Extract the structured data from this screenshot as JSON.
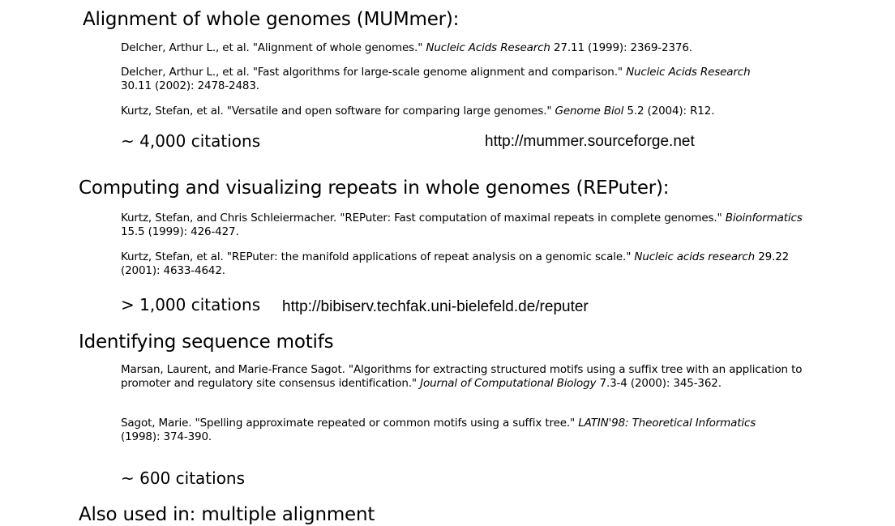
{
  "sections": [
    {
      "heading": "Alignment of whole genomes (MUMmer):",
      "refs": [
        {
          "pre": "Delcher, Arthur L., et al. \"Alignment of whole genomes.\" ",
          "journal": "Nucleic Acids Research",
          "post": " 27.11 (1999): 2369-2376."
        },
        {
          "pre": "Delcher, Arthur L., et al. \"Fast algorithms for large-scale genome alignment and comparison.\" ",
          "journal": "Nucleic Acids Research",
          "post": " 30.11 (2002): 2478-2483."
        },
        {
          "pre": "Kurtz, Stefan, et al. \"Versatile and open software for comparing large genomes.\" ",
          "journal": "Genome Biol",
          "post": " 5.2 (2004): R12."
        }
      ],
      "citations": "~ 4,000 citations",
      "url": "http://mummer.sourceforge.net"
    },
    {
      "heading": "Computing and visualizing repeats in whole genomes (REPuter):",
      "refs": [
        {
          "pre": "Kurtz, Stefan, and Chris Schleiermacher. \"REPuter: Fast computation of maximal repeats in complete genomes.\" ",
          "journal": "Bioinformatics",
          "post": " 15.5 (1999): 426-427."
        },
        {
          "pre": "Kurtz, Stefan, et al. \"REPuter: the manifold applications of repeat analysis on a genomic scale.\" ",
          "journal": "Nucleic acids research",
          "post": " 29.22 (2001): 4633-4642."
        }
      ],
      "citations": "> 1,000 citations",
      "url": "http://bibiserv.techfak.uni-bielefeld.de/reputer"
    },
    {
      "heading": "Identifying sequence motifs",
      "refs": [
        {
          "pre": "Marsan, Laurent, and Marie-France Sagot. \"Algorithms for extracting structured motifs using a suffix tree with an application to promoter and regulatory site consensus identification.\" ",
          "journal": "Journal of Computational Biology",
          "post": " 7.3-4 (2000): 345-362."
        },
        {
          "pre": "Sagot, Marie. \"Spelling approximate repeated or common motifs using a suffix tree.\" ",
          "journal": "LATIN'98: Theoretical Informatics",
          "post": " (1998): 374-390."
        }
      ],
      "citations": "~ 600 citations"
    },
    {
      "heading": "Also used in: multiple alignment"
    }
  ]
}
